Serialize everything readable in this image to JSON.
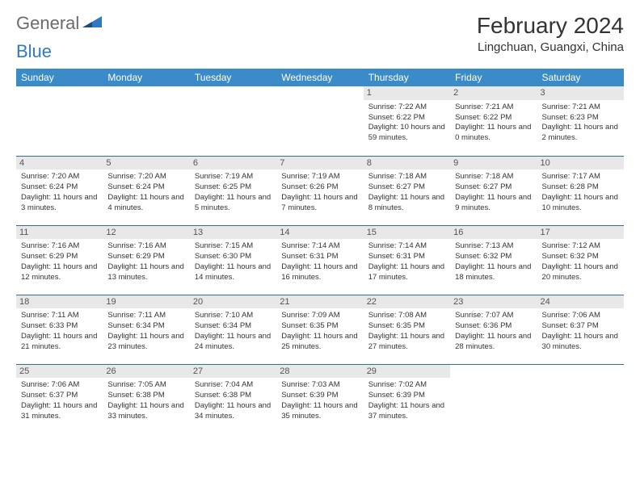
{
  "logo": {
    "word1": "General",
    "word2": "Blue"
  },
  "title": "February 2024",
  "subtitle": "Lingchuan, Guangxi, China",
  "colors": {
    "header_bg": "#3b8bc8",
    "header_text": "#ffffff",
    "daynum_bg": "#e8e8e8",
    "border": "#2f6ea8",
    "text": "#333333",
    "logo_gray": "#6b6b6b",
    "logo_blue": "#2f7abf"
  },
  "weekdays": [
    "Sunday",
    "Monday",
    "Tuesday",
    "Wednesday",
    "Thursday",
    "Friday",
    "Saturday"
  ],
  "weeks": [
    [
      null,
      null,
      null,
      null,
      {
        "n": "1",
        "sunrise": "7:22 AM",
        "sunset": "6:22 PM",
        "daylight": "10 hours and 59 minutes."
      },
      {
        "n": "2",
        "sunrise": "7:21 AM",
        "sunset": "6:22 PM",
        "daylight": "11 hours and 0 minutes."
      },
      {
        "n": "3",
        "sunrise": "7:21 AM",
        "sunset": "6:23 PM",
        "daylight": "11 hours and 2 minutes."
      }
    ],
    [
      {
        "n": "4",
        "sunrise": "7:20 AM",
        "sunset": "6:24 PM",
        "daylight": "11 hours and 3 minutes."
      },
      {
        "n": "5",
        "sunrise": "7:20 AM",
        "sunset": "6:24 PM",
        "daylight": "11 hours and 4 minutes."
      },
      {
        "n": "6",
        "sunrise": "7:19 AM",
        "sunset": "6:25 PM",
        "daylight": "11 hours and 5 minutes."
      },
      {
        "n": "7",
        "sunrise": "7:19 AM",
        "sunset": "6:26 PM",
        "daylight": "11 hours and 7 minutes."
      },
      {
        "n": "8",
        "sunrise": "7:18 AM",
        "sunset": "6:27 PM",
        "daylight": "11 hours and 8 minutes."
      },
      {
        "n": "9",
        "sunrise": "7:18 AM",
        "sunset": "6:27 PM",
        "daylight": "11 hours and 9 minutes."
      },
      {
        "n": "10",
        "sunrise": "7:17 AM",
        "sunset": "6:28 PM",
        "daylight": "11 hours and 10 minutes."
      }
    ],
    [
      {
        "n": "11",
        "sunrise": "7:16 AM",
        "sunset": "6:29 PM",
        "daylight": "11 hours and 12 minutes."
      },
      {
        "n": "12",
        "sunrise": "7:16 AM",
        "sunset": "6:29 PM",
        "daylight": "11 hours and 13 minutes."
      },
      {
        "n": "13",
        "sunrise": "7:15 AM",
        "sunset": "6:30 PM",
        "daylight": "11 hours and 14 minutes."
      },
      {
        "n": "14",
        "sunrise": "7:14 AM",
        "sunset": "6:31 PM",
        "daylight": "11 hours and 16 minutes."
      },
      {
        "n": "15",
        "sunrise": "7:14 AM",
        "sunset": "6:31 PM",
        "daylight": "11 hours and 17 minutes."
      },
      {
        "n": "16",
        "sunrise": "7:13 AM",
        "sunset": "6:32 PM",
        "daylight": "11 hours and 18 minutes."
      },
      {
        "n": "17",
        "sunrise": "7:12 AM",
        "sunset": "6:32 PM",
        "daylight": "11 hours and 20 minutes."
      }
    ],
    [
      {
        "n": "18",
        "sunrise": "7:11 AM",
        "sunset": "6:33 PM",
        "daylight": "11 hours and 21 minutes."
      },
      {
        "n": "19",
        "sunrise": "7:11 AM",
        "sunset": "6:34 PM",
        "daylight": "11 hours and 23 minutes."
      },
      {
        "n": "20",
        "sunrise": "7:10 AM",
        "sunset": "6:34 PM",
        "daylight": "11 hours and 24 minutes."
      },
      {
        "n": "21",
        "sunrise": "7:09 AM",
        "sunset": "6:35 PM",
        "daylight": "11 hours and 25 minutes."
      },
      {
        "n": "22",
        "sunrise": "7:08 AM",
        "sunset": "6:35 PM",
        "daylight": "11 hours and 27 minutes."
      },
      {
        "n": "23",
        "sunrise": "7:07 AM",
        "sunset": "6:36 PM",
        "daylight": "11 hours and 28 minutes."
      },
      {
        "n": "24",
        "sunrise": "7:06 AM",
        "sunset": "6:37 PM",
        "daylight": "11 hours and 30 minutes."
      }
    ],
    [
      {
        "n": "25",
        "sunrise": "7:06 AM",
        "sunset": "6:37 PM",
        "daylight": "11 hours and 31 minutes."
      },
      {
        "n": "26",
        "sunrise": "7:05 AM",
        "sunset": "6:38 PM",
        "daylight": "11 hours and 33 minutes."
      },
      {
        "n": "27",
        "sunrise": "7:04 AM",
        "sunset": "6:38 PM",
        "daylight": "11 hours and 34 minutes."
      },
      {
        "n": "28",
        "sunrise": "7:03 AM",
        "sunset": "6:39 PM",
        "daylight": "11 hours and 35 minutes."
      },
      {
        "n": "29",
        "sunrise": "7:02 AM",
        "sunset": "6:39 PM",
        "daylight": "11 hours and 37 minutes."
      },
      null,
      null
    ]
  ],
  "labels": {
    "sunrise": "Sunrise:",
    "sunset": "Sunset:",
    "daylight": "Daylight:"
  }
}
